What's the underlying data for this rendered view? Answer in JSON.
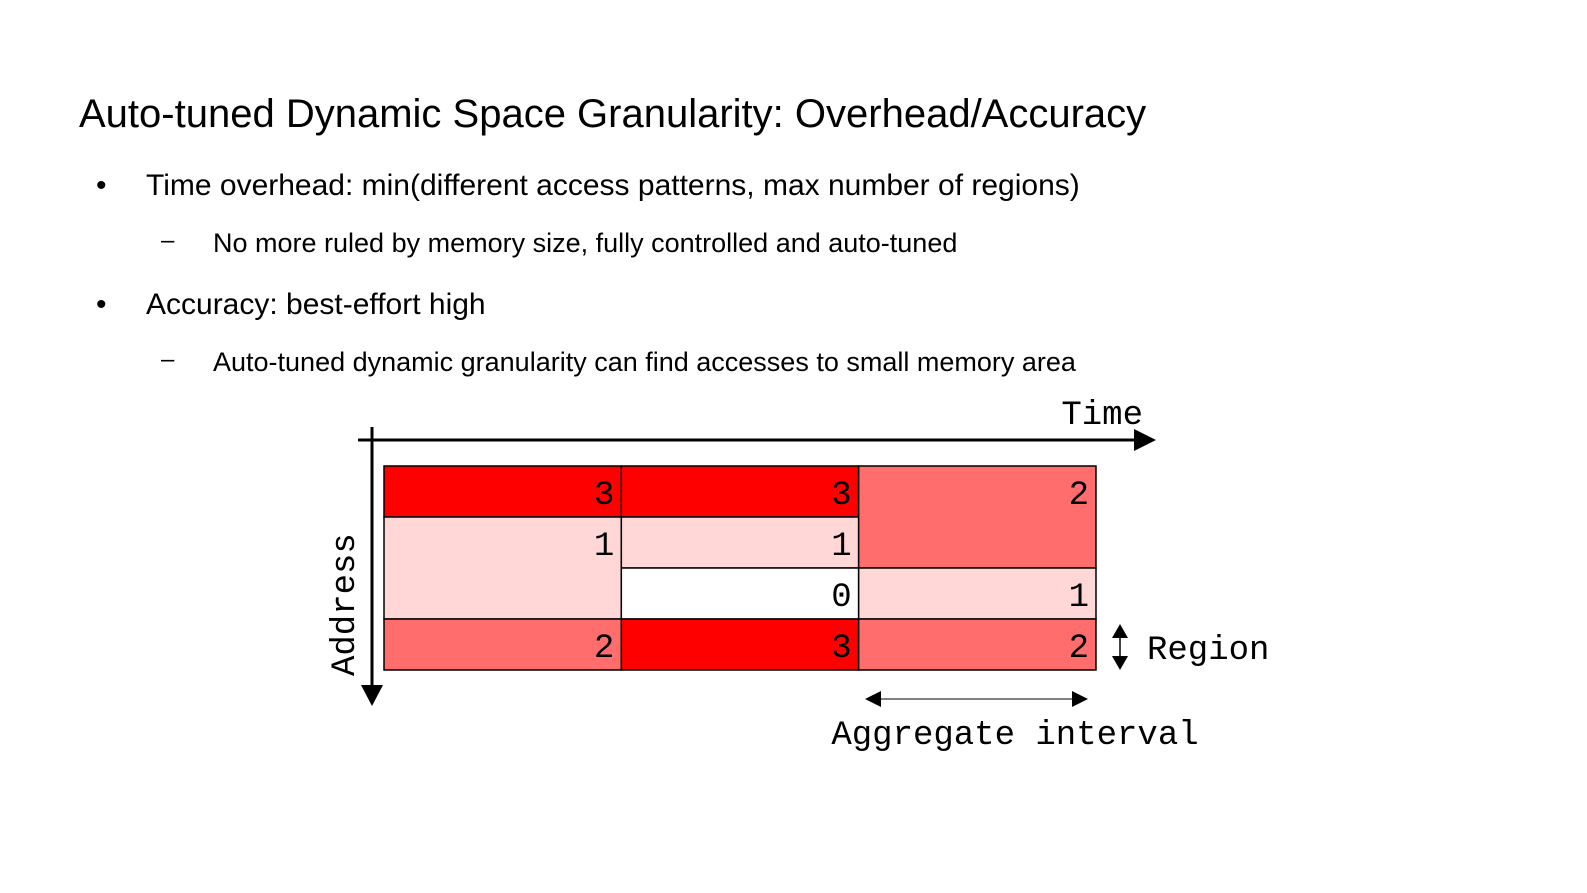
{
  "slide": {
    "title": "Auto-tuned Dynamic Space Granularity: Overhead/Accuracy",
    "bullets": [
      {
        "text": "Time overhead: min(different access patterns, max number of regions)",
        "sub": "No more ruled by memory size, fully controlled and auto-tuned"
      },
      {
        "text": "Accuracy: best-effort high",
        "sub": "Auto-tuned dynamic granularity can find accesses to small memory area"
      }
    ],
    "bullet_marker": "•",
    "sub_marker": "–"
  },
  "diagram": {
    "time_label": "Time",
    "address_label": "Address",
    "region_label": "Region",
    "aggregate_label": "Aggregate interval",
    "colors": {
      "level_0": "#ffffff",
      "level_1": "#ffd7d7",
      "level_2": "#ff6d6d",
      "level_3": "#ff0000",
      "line": "#000000"
    },
    "columns": [
      {
        "regions": [
          {
            "rows": 1,
            "count": 3
          },
          {
            "rows": 2,
            "count": 1
          },
          {
            "rows": 1,
            "count": 2
          }
        ]
      },
      {
        "regions": [
          {
            "rows": 1,
            "count": 3
          },
          {
            "rows": 1,
            "count": 1
          },
          {
            "rows": 1,
            "count": 0
          },
          {
            "rows": 1,
            "count": 3
          }
        ]
      },
      {
        "regions": [
          {
            "rows": 2,
            "count": 2
          },
          {
            "rows": 1,
            "count": 1
          },
          {
            "rows": 1,
            "count": 2
          }
        ]
      }
    ]
  }
}
